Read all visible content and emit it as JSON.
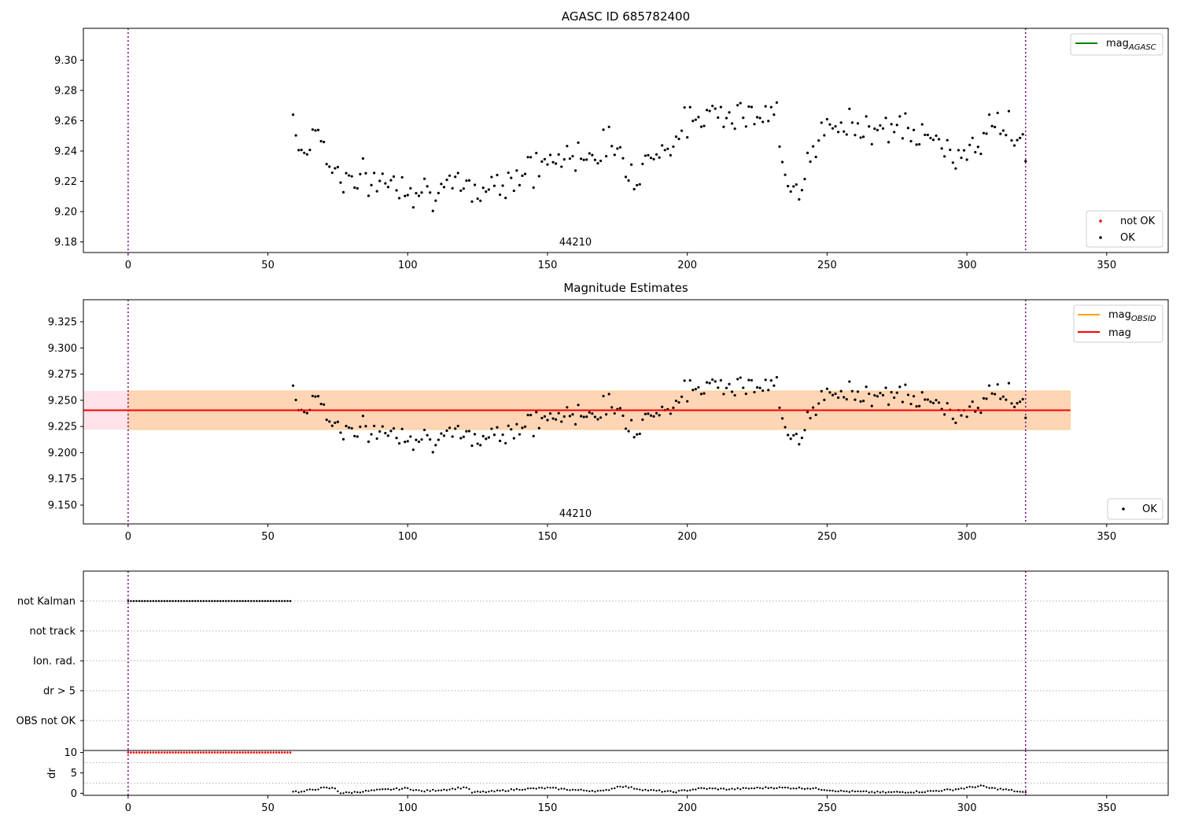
{
  "figure": {
    "panels": [
      {
        "id": "p1",
        "title": "AGASC ID 685782400",
        "obsid_label": "44210"
      },
      {
        "id": "p2",
        "title": "Magnitude Estimates",
        "obsid_label": "44210"
      },
      {
        "id": "p3",
        "title": ""
      }
    ]
  },
  "chart_data": [
    {
      "type": "scatter",
      "title": "AGASC ID 685782400",
      "xlim": [
        -16,
        372
      ],
      "ylim": [
        9.173,
        9.321
      ],
      "x_ticks": [
        0,
        50,
        100,
        150,
        200,
        250,
        300,
        350
      ],
      "y_ticks": [
        "9.18",
        "9.20",
        "9.22",
        "9.24",
        "9.26",
        "9.28",
        "9.30"
      ],
      "obsid_label": "44210",
      "obsid_boundaries": [
        0,
        321
      ],
      "series": [
        {
          "name": "OK",
          "color": "#000000",
          "x_start": 59,
          "x_end": 321,
          "mag_profile": [
            [
              59,
              9.268
            ],
            [
              61,
              9.24
            ],
            [
              65,
              9.244
            ],
            [
              68,
              9.258
            ],
            [
              72,
              9.23
            ],
            [
              80,
              9.22
            ],
            [
              95,
              9.22
            ],
            [
              110,
              9.214
            ],
            [
              125,
              9.214
            ],
            [
              135,
              9.222
            ],
            [
              150,
              9.232
            ],
            [
              165,
              9.24
            ],
            [
              175,
              9.244
            ],
            [
              180,
              9.225
            ],
            [
              190,
              9.24
            ],
            [
              200,
              9.256
            ],
            [
              210,
              9.27
            ],
            [
              222,
              9.262
            ],
            [
              232,
              9.262
            ],
            [
              234,
              9.228
            ],
            [
              241,
              9.22
            ],
            [
              246,
              9.246
            ],
            [
              255,
              9.256
            ],
            [
              270,
              9.258
            ],
            [
              280,
              9.251
            ],
            [
              290,
              9.246
            ],
            [
              295,
              9.235
            ],
            [
              305,
              9.25
            ],
            [
              314,
              9.258
            ],
            [
              321,
              9.242
            ]
          ],
          "amplitude": 0.012
        },
        {
          "name": "not OK",
          "color": "#ff0000",
          "x_start": 0,
          "x_end": 0,
          "mag_profile": [],
          "amplitude": 0
        }
      ],
      "lines": [
        {
          "name": "mag$_{AGASC}$",
          "legend_label": "mag",
          "legend_sub": "AGASC",
          "color": "#008000"
        }
      ],
      "legend": {
        "upper_right": [
          "mag_AGASC"
        ],
        "lower_right": [
          "not OK",
          "OK"
        ]
      }
    },
    {
      "type": "scatter",
      "title": "Magnitude Estimates",
      "xlim": [
        -16,
        372
      ],
      "ylim": [
        9.132,
        9.346
      ],
      "x_ticks": [
        0,
        50,
        100,
        150,
        200,
        250,
        300,
        350
      ],
      "y_ticks": [
        "9.150",
        "9.175",
        "9.200",
        "9.225",
        "9.250",
        "9.275",
        "9.300",
        "9.325"
      ],
      "obsid_label": "44210",
      "obsid_boundaries": [
        0,
        321
      ],
      "mag": 9.2405,
      "mag_band_pink": {
        "x": [
          -16,
          337
        ],
        "y": [
          9.222,
          9.259
        ],
        "color": "#ffc0cb"
      },
      "mag_band_orange": {
        "x": [
          0,
          337
        ],
        "y": [
          9.222,
          9.259
        ],
        "color": "#ffa500"
      },
      "mag_line_x": [
        -16,
        337
      ],
      "mag_obsid_line": {
        "legend_label": "mag",
        "legend_sub": "OBSID",
        "color": "#ffa500"
      },
      "mag_line": {
        "legend_label": "mag",
        "color": "#ff0000"
      },
      "legend": {
        "upper_right": [
          "mag_OBSID",
          "mag"
        ],
        "lower_right": [
          "OK"
        ]
      }
    },
    {
      "type": "scatter",
      "title": "",
      "xlim": [
        -16,
        372
      ],
      "x_ticks": [
        0,
        50,
        100,
        150,
        200,
        250,
        300,
        350
      ],
      "flag_rows": [
        "not Kalman",
        "not track",
        "Ion. rad.",
        "dr > 5",
        "OBS not OK"
      ],
      "flag_segments": [
        {
          "row": "not Kalman",
          "x_start": 0,
          "x_end": 58
        }
      ],
      "dr": {
        "ylabel": "dr",
        "ylim": [
          -0.5,
          10.5
        ],
        "y_ticks": [
          "0",
          "5",
          "10"
        ],
        "clipped_red": {
          "x_start": 0,
          "x_end": 58,
          "value": 10
        },
        "black_profile": [
          [
            59,
            0.5
          ],
          [
            62,
            0.3
          ],
          [
            65,
            0.8
          ],
          [
            70,
            1.3
          ],
          [
            74,
            1.2
          ],
          [
            76,
            0.0
          ],
          [
            80,
            0.2
          ],
          [
            90,
            0.8
          ],
          [
            100,
            1.2
          ],
          [
            105,
            0.5
          ],
          [
            115,
            1.0
          ],
          [
            121,
            1.5
          ],
          [
            123,
            0.2
          ],
          [
            130,
            0.4
          ],
          [
            140,
            1.0
          ],
          [
            150,
            1.3
          ],
          [
            160,
            0.8
          ],
          [
            170,
            0.5
          ],
          [
            176,
            1.8
          ],
          [
            185,
            0.8
          ],
          [
            195,
            0.3
          ],
          [
            205,
            1.2
          ],
          [
            215,
            1.0
          ],
          [
            230,
            1.4
          ],
          [
            245,
            1.2
          ],
          [
            255,
            0.5
          ],
          [
            270,
            0.2
          ],
          [
            285,
            0.4
          ],
          [
            295,
            0.9
          ],
          [
            305,
            1.8
          ],
          [
            308,
            1.3
          ],
          [
            315,
            0.8
          ],
          [
            321,
            0.1
          ]
        ]
      },
      "obsid_boundaries": [
        0,
        321
      ]
    }
  ]
}
